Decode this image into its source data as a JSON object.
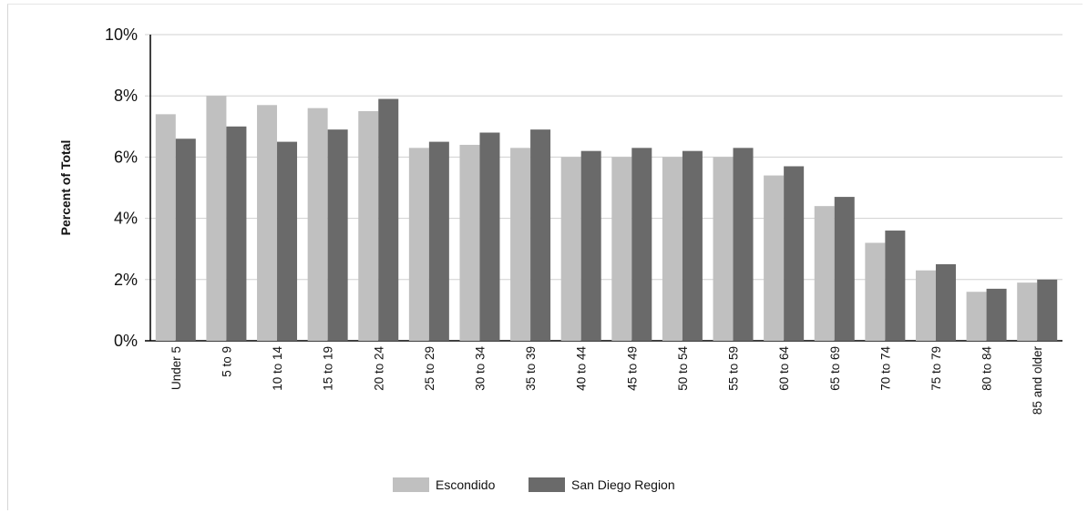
{
  "chart_data": {
    "type": "bar",
    "title": "",
    "xlabel": "",
    "ylabel": "Percent of Total",
    "ylim": [
      0,
      10
    ],
    "yticks": [
      "0%",
      "2%",
      "4%",
      "6%",
      "8%",
      "10%"
    ],
    "grid": true,
    "legend_position": "bottom",
    "categories": [
      "Under 5",
      "5 to 9",
      "10 to 14",
      "15 to 19",
      "20 to 24",
      "25 to 29",
      "30 to 34",
      "35 to 39",
      "40 to 44",
      "45 to 49",
      "50 to 54",
      "55 to 59",
      "60 to 64",
      "65 to 69",
      "70 to 74",
      "75 to 79",
      "80 to 84",
      "85 and older"
    ],
    "series": [
      {
        "name": "Escondido",
        "color": "#c0c0c0",
        "values": [
          7.4,
          8.0,
          7.7,
          7.6,
          7.5,
          6.3,
          6.4,
          6.3,
          6.0,
          6.0,
          6.0,
          6.0,
          5.4,
          4.4,
          3.2,
          2.3,
          1.6,
          1.9
        ]
      },
      {
        "name": "San Diego Region",
        "color": "#6a6a6a",
        "values": [
          6.6,
          7.0,
          6.5,
          6.9,
          7.9,
          6.5,
          6.8,
          6.9,
          6.2,
          6.3,
          6.2,
          6.3,
          5.7,
          4.7,
          3.6,
          2.5,
          1.7,
          2.0
        ]
      }
    ]
  }
}
